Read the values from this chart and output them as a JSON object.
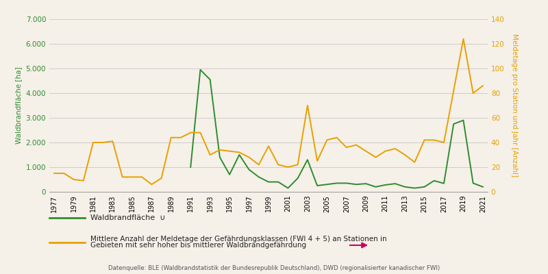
{
  "years": [
    1977,
    1978,
    1979,
    1980,
    1981,
    1982,
    1983,
    1984,
    1985,
    1986,
    1987,
    1988,
    1989,
    1990,
    1991,
    1992,
    1993,
    1994,
    1995,
    1996,
    1997,
    1998,
    1999,
    2000,
    2001,
    2002,
    2003,
    2004,
    2005,
    2006,
    2007,
    2008,
    2009,
    2010,
    2011,
    2012,
    2013,
    2014,
    2015,
    2016,
    2017,
    2018,
    2019,
    2020,
    2021
  ],
  "waldflaeche": [
    null,
    null,
    null,
    null,
    null,
    null,
    null,
    null,
    null,
    null,
    null,
    null,
    null,
    null,
    1000,
    4950,
    4550,
    1400,
    700,
    1500,
    900,
    600,
    400,
    400,
    150,
    550,
    1300,
    250,
    300,
    350,
    350,
    300,
    330,
    200,
    280,
    330,
    200,
    150,
    200,
    450,
    340,
    2750,
    2900,
    350,
    200
  ],
  "meldetage": [
    15,
    15,
    10,
    9,
    40,
    40,
    41,
    12,
    12,
    12,
    6,
    11,
    44,
    44,
    48,
    48,
    30,
    34,
    33,
    32,
    28,
    22,
    37,
    22,
    20,
    22,
    70,
    25,
    42,
    44,
    36,
    38,
    33,
    28,
    33,
    35,
    30,
    24,
    42,
    42,
    40,
    82,
    124,
    80,
    86
  ],
  "green_color": "#2e8b2e",
  "orange_color": "#e8a000",
  "bg_color": "#f5f0e8",
  "ylabel_left": "Waldbrandfläche [ha]",
  "ylabel_right": "Meldetage pro Station und Jahr [Anzahl]",
  "ylim_left": [
    0,
    7000
  ],
  "ylim_right": [
    0,
    140
  ],
  "yticks_left": [
    0,
    1000,
    2000,
    3000,
    4000,
    5000,
    6000,
    7000
  ],
  "yticks_right": [
    0,
    20,
    40,
    60,
    80,
    100,
    120,
    140
  ],
  "legend_waldflaeche": "Waldbrandfläche",
  "legend_meldetage": "Mittlere Anzahl der Meldetage der Gefährdungsklassen (FWI 4 + 5) an Stationen in\nGebieten mit sehr hoher bis mittlerer Waldbrandgefährdung",
  "source_text": "Datenquelle: BLE (Waldbrandstatistik der Bundesrepublik Deutschland), DWD (regionalisierter kanadischer FWI)",
  "xtick_years": [
    1977,
    1979,
    1981,
    1983,
    1985,
    1987,
    1989,
    1991,
    1993,
    1995,
    1997,
    1999,
    2001,
    2003,
    2005,
    2007,
    2009,
    2011,
    2013,
    2015,
    2017,
    2019,
    2021
  ]
}
